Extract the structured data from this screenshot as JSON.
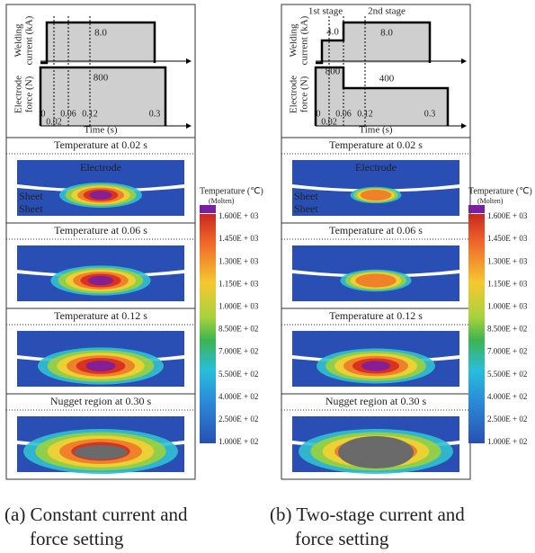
{
  "panels": [
    {
      "caption": [
        "(a) Constant current and",
        "force setting"
      ],
      "schedule": {
        "current_label": [
          "Welding",
          "current (kA)"
        ],
        "force_label": [
          "Electrode",
          "force (N)"
        ],
        "x_label": "Time (s)",
        "time_ticks": [
          "0",
          "0.02",
          "0.06",
          "0.12",
          "0.3"
        ],
        "current_values": [
          "8.0"
        ],
        "force_values": [
          "800"
        ]
      },
      "frames": [
        {
          "title": "Temperature at 0.02 s",
          "labels": [
            "Electrode",
            "Sheet",
            "Sheet"
          ]
        },
        {
          "title": "Temperature at 0.06 s"
        },
        {
          "title": "Temperature at 0.12 s"
        },
        {
          "title": "Nugget region at 0.30 s"
        }
      ]
    },
    {
      "caption": [
        "(b) Two-stage current and",
        "force setting"
      ],
      "schedule": {
        "current_label": [
          "Welding",
          "current (kA)"
        ],
        "force_label": [
          "Electrode",
          "force (N)"
        ],
        "x_label": "Time (s)",
        "time_ticks": [
          "0",
          "0.02",
          "0.06",
          "0.12",
          "0.3"
        ],
        "stages": [
          "1st stage",
          "2nd stage"
        ],
        "current_values": [
          "4.0",
          "8.0"
        ],
        "force_values": [
          "800",
          "400"
        ]
      },
      "frames": [
        {
          "title": "Temperature at 0.02 s",
          "labels": [
            "Electrode",
            "Sheet",
            "Sheet"
          ]
        },
        {
          "title": "Temperature at 0.06 s"
        },
        {
          "title": "Temperature at 0.12 s"
        },
        {
          "title": "Nugget region at 0.30 s"
        }
      ]
    }
  ],
  "colorbar": {
    "title": "Temperature (℃)",
    "molten": "(Molten)",
    "ticks": [
      "1.600E + 03",
      "1.450E + 03",
      "1.300E + 03",
      "1.150E + 03",
      "1.000E + 03",
      "8.500E + 02",
      "7.000E + 02",
      "5.500E + 02",
      "4.000E + 02",
      "2.500E + 02",
      "1.000E + 02"
    ]
  }
}
